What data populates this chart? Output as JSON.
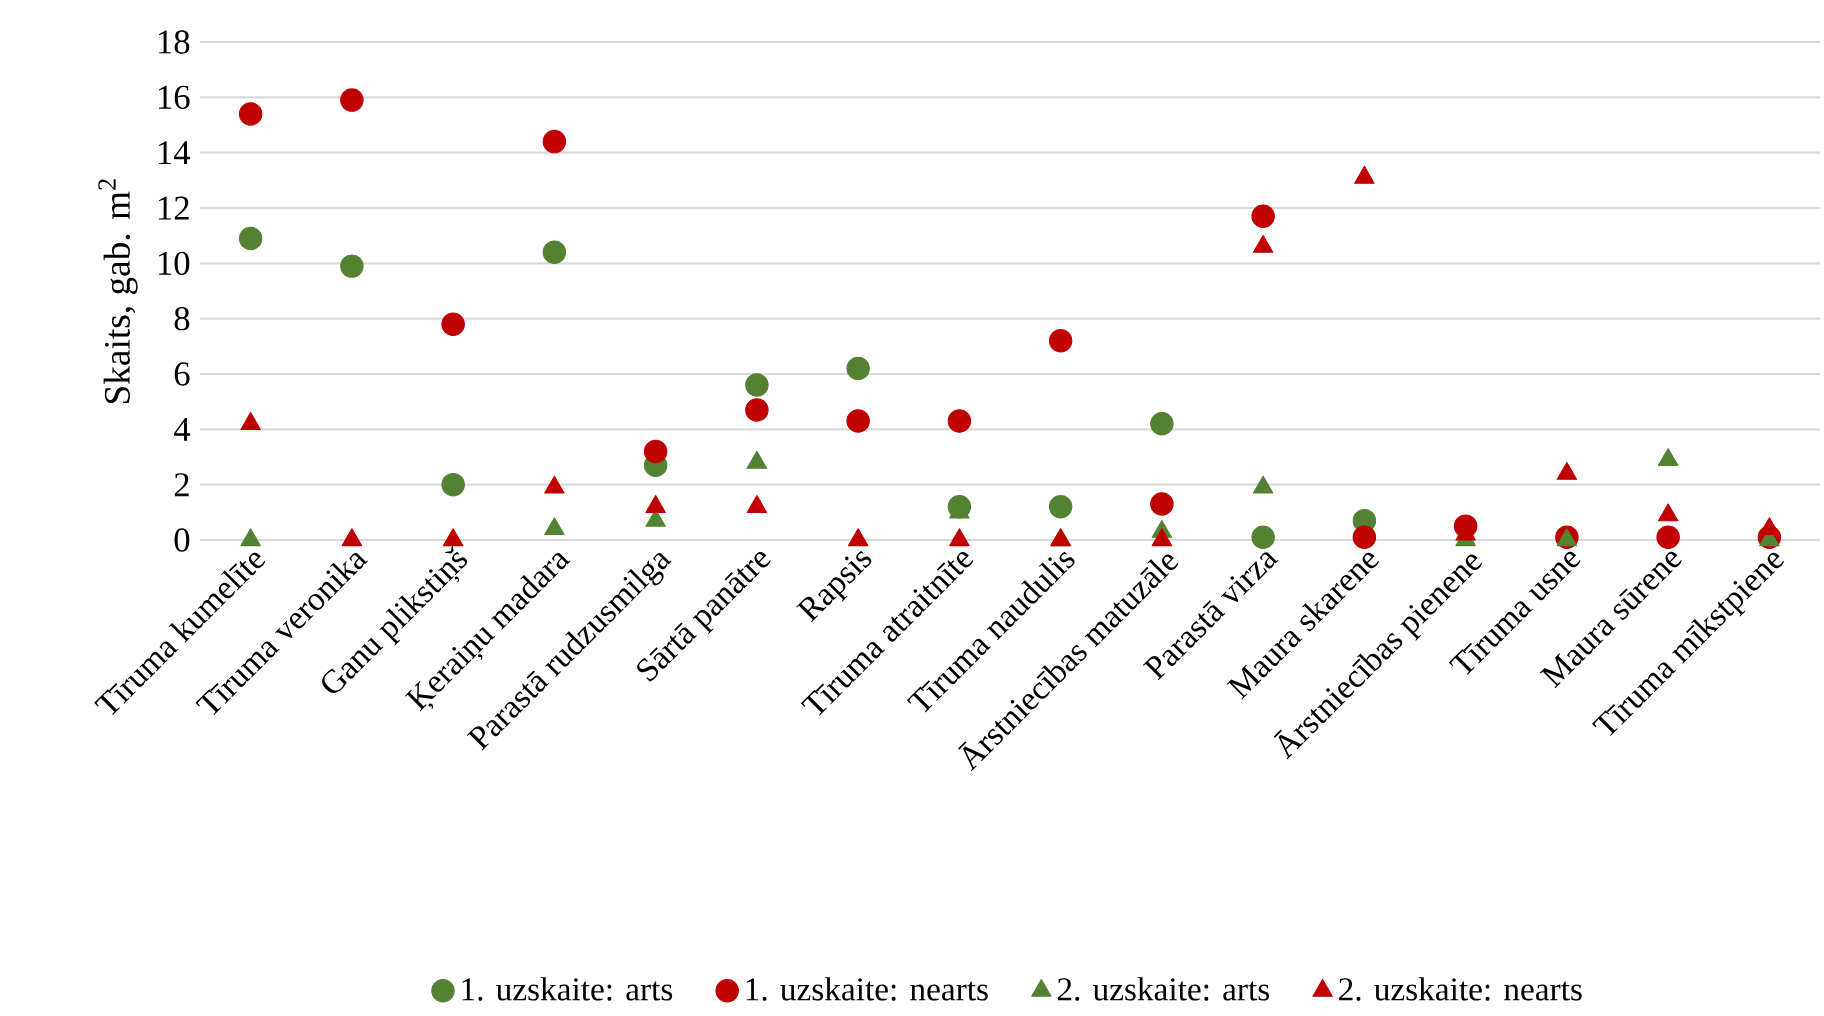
{
  "chart_data": {
    "type": "scatter",
    "ylabel": "Skaits, gab. m$^{2}$",
    "categories": [
      "Tīruma kumelīte",
      "Tīruma veronika",
      "Ganu plikstiņš",
      "Ķeraiņu madara",
      "Parastā rudzusmilga",
      "Sārtā panātre",
      "Rapsis",
      "Tīruma atraitnīte",
      "Tīruma naudulis",
      "Ārstniecības matuzāle",
      "Parastā virza",
      "Maura skarene",
      "Ārstniecības pienene",
      "Tīruma usne",
      "Maura sūrene",
      "Tīruma mīkstpiene"
    ],
    "series": [
      {
        "name": "1. uzskaite: arts",
        "color": "#548235",
        "marker": "circle",
        "values": [
          10.9,
          9.9,
          2.0,
          10.4,
          2.7,
          5.6,
          6.2,
          1.2,
          1.2,
          4.2,
          0.1,
          0.7,
          null,
          null,
          null,
          null
        ]
      },
      {
        "name": "1. uzskaite: nearts",
        "color": "#c00000",
        "marker": "circle",
        "values": [
          15.4,
          15.9,
          7.8,
          14.4,
          3.2,
          4.7,
          4.3,
          4.3,
          7.2,
          1.3,
          11.7,
          0.1,
          0.5,
          0.1,
          0.1,
          0.1
        ]
      },
      {
        "name": "2. uzskaite: arts",
        "color": "#548235",
        "marker": "triangle",
        "values": [
          0,
          null,
          null,
          0.4,
          0.7,
          2.8,
          null,
          1.0,
          0,
          0.3,
          1.9,
          null,
          0,
          0,
          2.9,
          0
        ]
      },
      {
        "name": "2. uzskaite: nearts",
        "color": "#c00000",
        "marker": "triangle",
        "values": [
          4.2,
          0,
          0,
          1.9,
          1.2,
          1.2,
          0,
          0,
          0,
          0,
          10.6,
          13.1,
          0.2,
          2.4,
          0.9,
          0.4
        ]
      }
    ],
    "ylim": [
      0,
      18
    ],
    "yticks": [
      0,
      2,
      4,
      6,
      8,
      10,
      12,
      14,
      16,
      18
    ],
    "grid": "y",
    "legend": "bottom"
  }
}
